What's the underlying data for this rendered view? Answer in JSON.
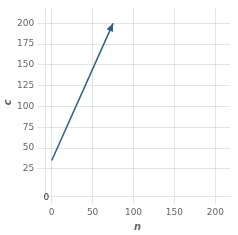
{
  "chart_data": {
    "type": "line",
    "x_label": "n",
    "y_label": "c",
    "x": [
      0,
      75
    ],
    "values": [
      35,
      200
    ],
    "color": "#2E6080",
    "xlim": [
      -8,
      218
    ],
    "ylim": [
      -8,
      218
    ],
    "xticks": [
      0,
      50,
      100,
      150,
      200
    ],
    "yticks": [
      25,
      50,
      75,
      100,
      125,
      150,
      175,
      200
    ],
    "grid": true,
    "annotations": [
      {
        "text": "0",
        "x": -3,
        "y": -4
      }
    ]
  }
}
